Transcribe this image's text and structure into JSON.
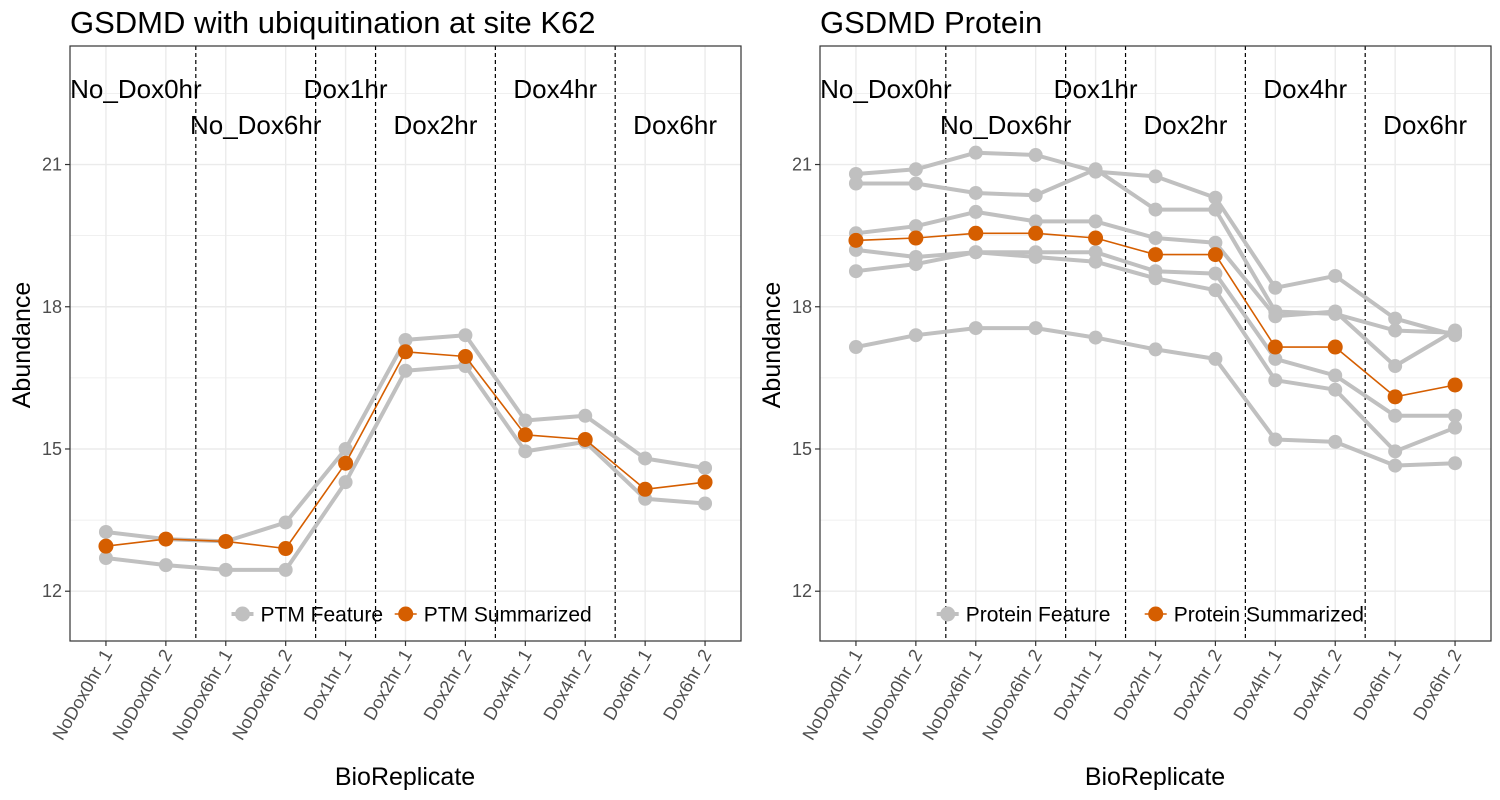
{
  "charts_meta": {
    "colors": {
      "feature": "#c0c0c0",
      "summarized": "#d55e00",
      "grid": "#ebebeb",
      "frame": "#333333",
      "vline": "#000000"
    }
  },
  "chart_data": [
    {
      "type": "line",
      "title": "GSDMD with ubiquitination at site K62",
      "xlabel": "BioReplicate",
      "ylabel": "Abundance",
      "ylim": [
        10.95,
        23.5
      ],
      "yticks": [
        12,
        15,
        18,
        21
      ],
      "grid": true,
      "legend_position": "bottom-inside",
      "categories": [
        "NoDox0hr_1",
        "NoDox0hr_2",
        "NoDox6hr_1",
        "NoDox6hr_2",
        "Dox1hr_1",
        "Dox2hr_1",
        "Dox2hr_2",
        "Dox4hr_1",
        "Dox4hr_2",
        "Dox6hr_1",
        "Dox6hr_2"
      ],
      "conditions": [
        {
          "label": "No_Dox0hr",
          "start": 0,
          "end": 1,
          "row": 0
        },
        {
          "label": "No_Dox6hr",
          "start": 2,
          "end": 3,
          "row": 1
        },
        {
          "label": "Dox1hr",
          "start": 4,
          "end": 4,
          "row": 0
        },
        {
          "label": "Dox2hr",
          "start": 5,
          "end": 6,
          "row": 1
        },
        {
          "label": "Dox4hr",
          "start": 7,
          "end": 8,
          "row": 0
        },
        {
          "label": "Dox6hr",
          "start": 9,
          "end": 10,
          "row": 1
        }
      ],
      "boundaries": [
        1.5,
        3.5,
        4.5,
        6.5,
        8.5
      ],
      "legend": [
        {
          "label": "PTM Feature",
          "kind": "feature"
        },
        {
          "label": "PTM Summarized",
          "kind": "summarized"
        }
      ],
      "series": [
        {
          "kind": "feature",
          "values": [
            13.25,
            13.1,
            13.05,
            13.45,
            15.0,
            17.3,
            17.4,
            15.6,
            15.7,
            14.8,
            14.6
          ]
        },
        {
          "kind": "feature",
          "values": [
            12.7,
            12.55,
            12.45,
            12.45,
            14.3,
            16.65,
            16.75,
            14.95,
            15.15,
            13.95,
            13.85
          ]
        },
        {
          "kind": "summarized",
          "values": [
            12.95,
            13.1,
            13.05,
            12.9,
            14.7,
            17.05,
            16.95,
            15.3,
            15.2,
            14.15,
            14.3
          ]
        }
      ]
    },
    {
      "type": "line",
      "title": "GSDMD Protein",
      "xlabel": "BioReplicate",
      "ylabel": "Abundance",
      "ylim": [
        10.95,
        23.5
      ],
      "yticks": [
        12,
        15,
        18,
        21
      ],
      "grid": true,
      "legend_position": "bottom-inside",
      "categories": [
        "NoDox0hr_1",
        "NoDox0hr_2",
        "NoDox6hr_1",
        "NoDox6hr_2",
        "Dox1hr_1",
        "Dox2hr_1",
        "Dox2hr_2",
        "Dox4hr_1",
        "Dox4hr_2",
        "Dox6hr_1",
        "Dox6hr_2"
      ],
      "conditions": [
        {
          "label": "No_Dox0hr",
          "start": 0,
          "end": 1,
          "row": 0
        },
        {
          "label": "No_Dox6hr",
          "start": 2,
          "end": 3,
          "row": 1
        },
        {
          "label": "Dox1hr",
          "start": 4,
          "end": 4,
          "row": 0
        },
        {
          "label": "Dox2hr",
          "start": 5,
          "end": 6,
          "row": 1
        },
        {
          "label": "Dox4hr",
          "start": 7,
          "end": 8,
          "row": 0
        },
        {
          "label": "Dox6hr",
          "start": 9,
          "end": 10,
          "row": 1
        }
      ],
      "boundaries": [
        1.5,
        3.5,
        4.5,
        6.5,
        8.5
      ],
      "legend": [
        {
          "label": "Protein Feature",
          "kind": "feature"
        },
        {
          "label": "Protein Summarized",
          "kind": "summarized"
        }
      ],
      "series": [
        {
          "kind": "feature",
          "values": [
            20.8,
            20.9,
            21.25,
            21.2,
            20.85,
            20.75,
            20.3,
            18.4,
            18.65,
            17.75,
            17.4
          ]
        },
        {
          "kind": "feature",
          "values": [
            20.6,
            20.6,
            20.4,
            20.35,
            20.9,
            20.05,
            20.05,
            17.9,
            17.85,
            17.5,
            17.45
          ]
        },
        {
          "kind": "feature",
          "values": [
            19.55,
            19.7,
            20.0,
            19.8,
            19.8,
            19.45,
            19.35,
            17.8,
            17.9,
            16.75,
            17.5
          ]
        },
        {
          "kind": "feature",
          "values": [
            19.2,
            19.05,
            19.15,
            19.15,
            19.15,
            18.75,
            18.7,
            16.9,
            16.55,
            15.7,
            15.7
          ]
        },
        {
          "kind": "feature",
          "values": [
            18.75,
            18.9,
            19.15,
            19.05,
            18.95,
            18.6,
            18.35,
            16.45,
            16.25,
            14.95,
            15.45
          ]
        },
        {
          "kind": "feature",
          "values": [
            17.15,
            17.4,
            17.55,
            17.55,
            17.35,
            17.1,
            16.9,
            15.2,
            15.15,
            14.65,
            14.7
          ]
        },
        {
          "kind": "summarized",
          "values": [
            19.4,
            19.45,
            19.55,
            19.55,
            19.45,
            19.1,
            19.1,
            17.15,
            17.15,
            16.1,
            16.35
          ]
        }
      ]
    }
  ]
}
